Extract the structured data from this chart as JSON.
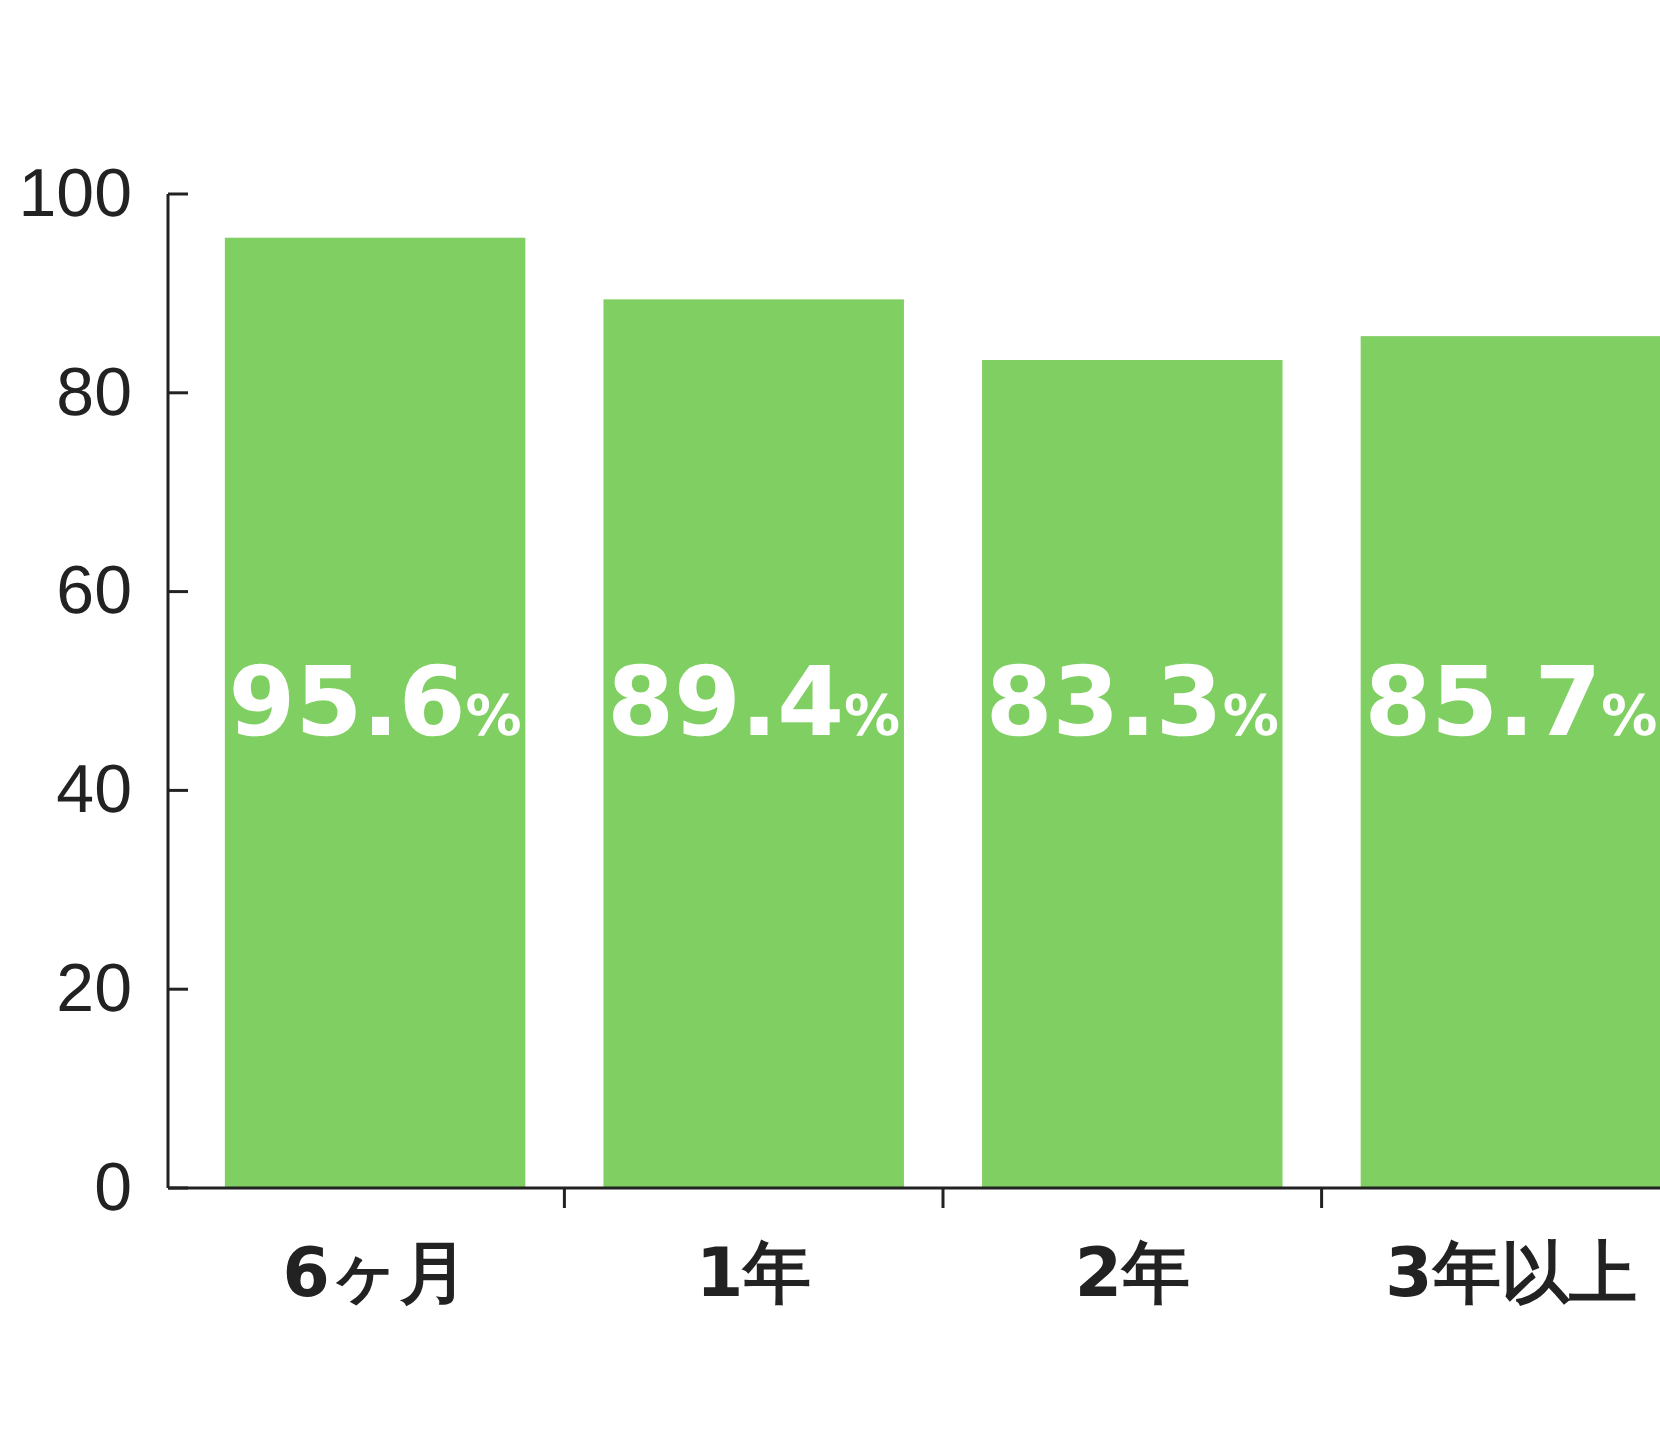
{
  "chart_data": {
    "type": "bar",
    "categories": [
      "6ヶ月",
      "1年",
      "2年",
      "3年以上"
    ],
    "values": [
      95.6,
      89.4,
      83.3,
      85.7
    ],
    "color": "#80cf63",
    "value_labels": [
      "95.6%",
      "89.4%",
      "83.3%",
      "85.7%"
    ],
    "ylim": [
      0,
      100
    ],
    "yticks": [
      0,
      20,
      40,
      60,
      80,
      100
    ],
    "grid": false
  }
}
